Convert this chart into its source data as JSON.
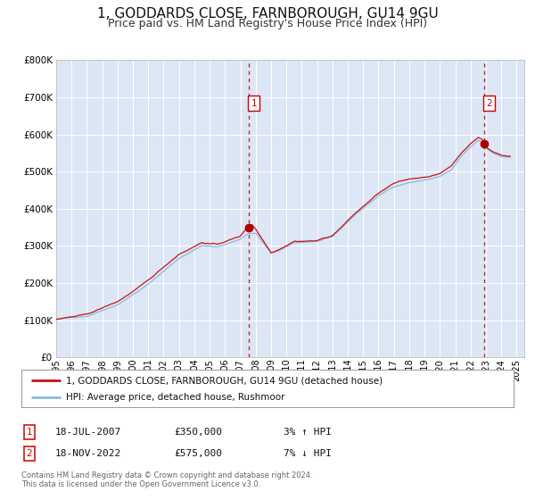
{
  "title": "1, GODDARDS CLOSE, FARNBOROUGH, GU14 9GU",
  "subtitle": "Price paid vs. HM Land Registry's House Price Index (HPI)",
  "title_fontsize": 11,
  "subtitle_fontsize": 9,
  "background_color": "#ffffff",
  "plot_bg_color": "#dce6f5",
  "grid_color": "#ffffff",
  "ylim": [
    0,
    800000
  ],
  "yticks": [
    0,
    100000,
    200000,
    300000,
    400000,
    500000,
    600000,
    700000,
    800000
  ],
  "ytick_labels": [
    "£0",
    "£100K",
    "£200K",
    "£300K",
    "£400K",
    "£500K",
    "£600K",
    "£700K",
    "£800K"
  ],
  "xlim_start": 1995.0,
  "xlim_end": 2025.5,
  "xtick_years": [
    1995,
    1996,
    1997,
    1998,
    1999,
    2000,
    2001,
    2002,
    2003,
    2004,
    2005,
    2006,
    2007,
    2008,
    2009,
    2010,
    2011,
    2012,
    2013,
    2014,
    2015,
    2016,
    2017,
    2018,
    2019,
    2020,
    2021,
    2022,
    2023,
    2024,
    2025
  ],
  "sale1_x": 2007.54,
  "sale1_y": 350000,
  "sale1_label": "1",
  "sale1_date": "18-JUL-2007",
  "sale1_price": "£350,000",
  "sale1_hpi": "3% ↑ HPI",
  "sale2_x": 2022.88,
  "sale2_y": 575000,
  "sale2_label": "2",
  "sale2_date": "18-NOV-2022",
  "sale2_price": "£575,000",
  "sale2_hpi": "7% ↓ HPI",
  "hpi_line_color": "#88bbdd",
  "sale_line_color": "#cc1111",
  "sale_dot_color": "#aa0000",
  "vline_color": "#cc1111",
  "legend_label_sale": "1, GODDARDS CLOSE, FARNBOROUGH, GU14 9GU (detached house)",
  "legend_label_hpi": "HPI: Average price, detached house, Rushmoor",
  "footer_text": "Contains HM Land Registry data © Crown copyright and database right 2024.\nThis data is licensed under the Open Government Licence v3.0."
}
